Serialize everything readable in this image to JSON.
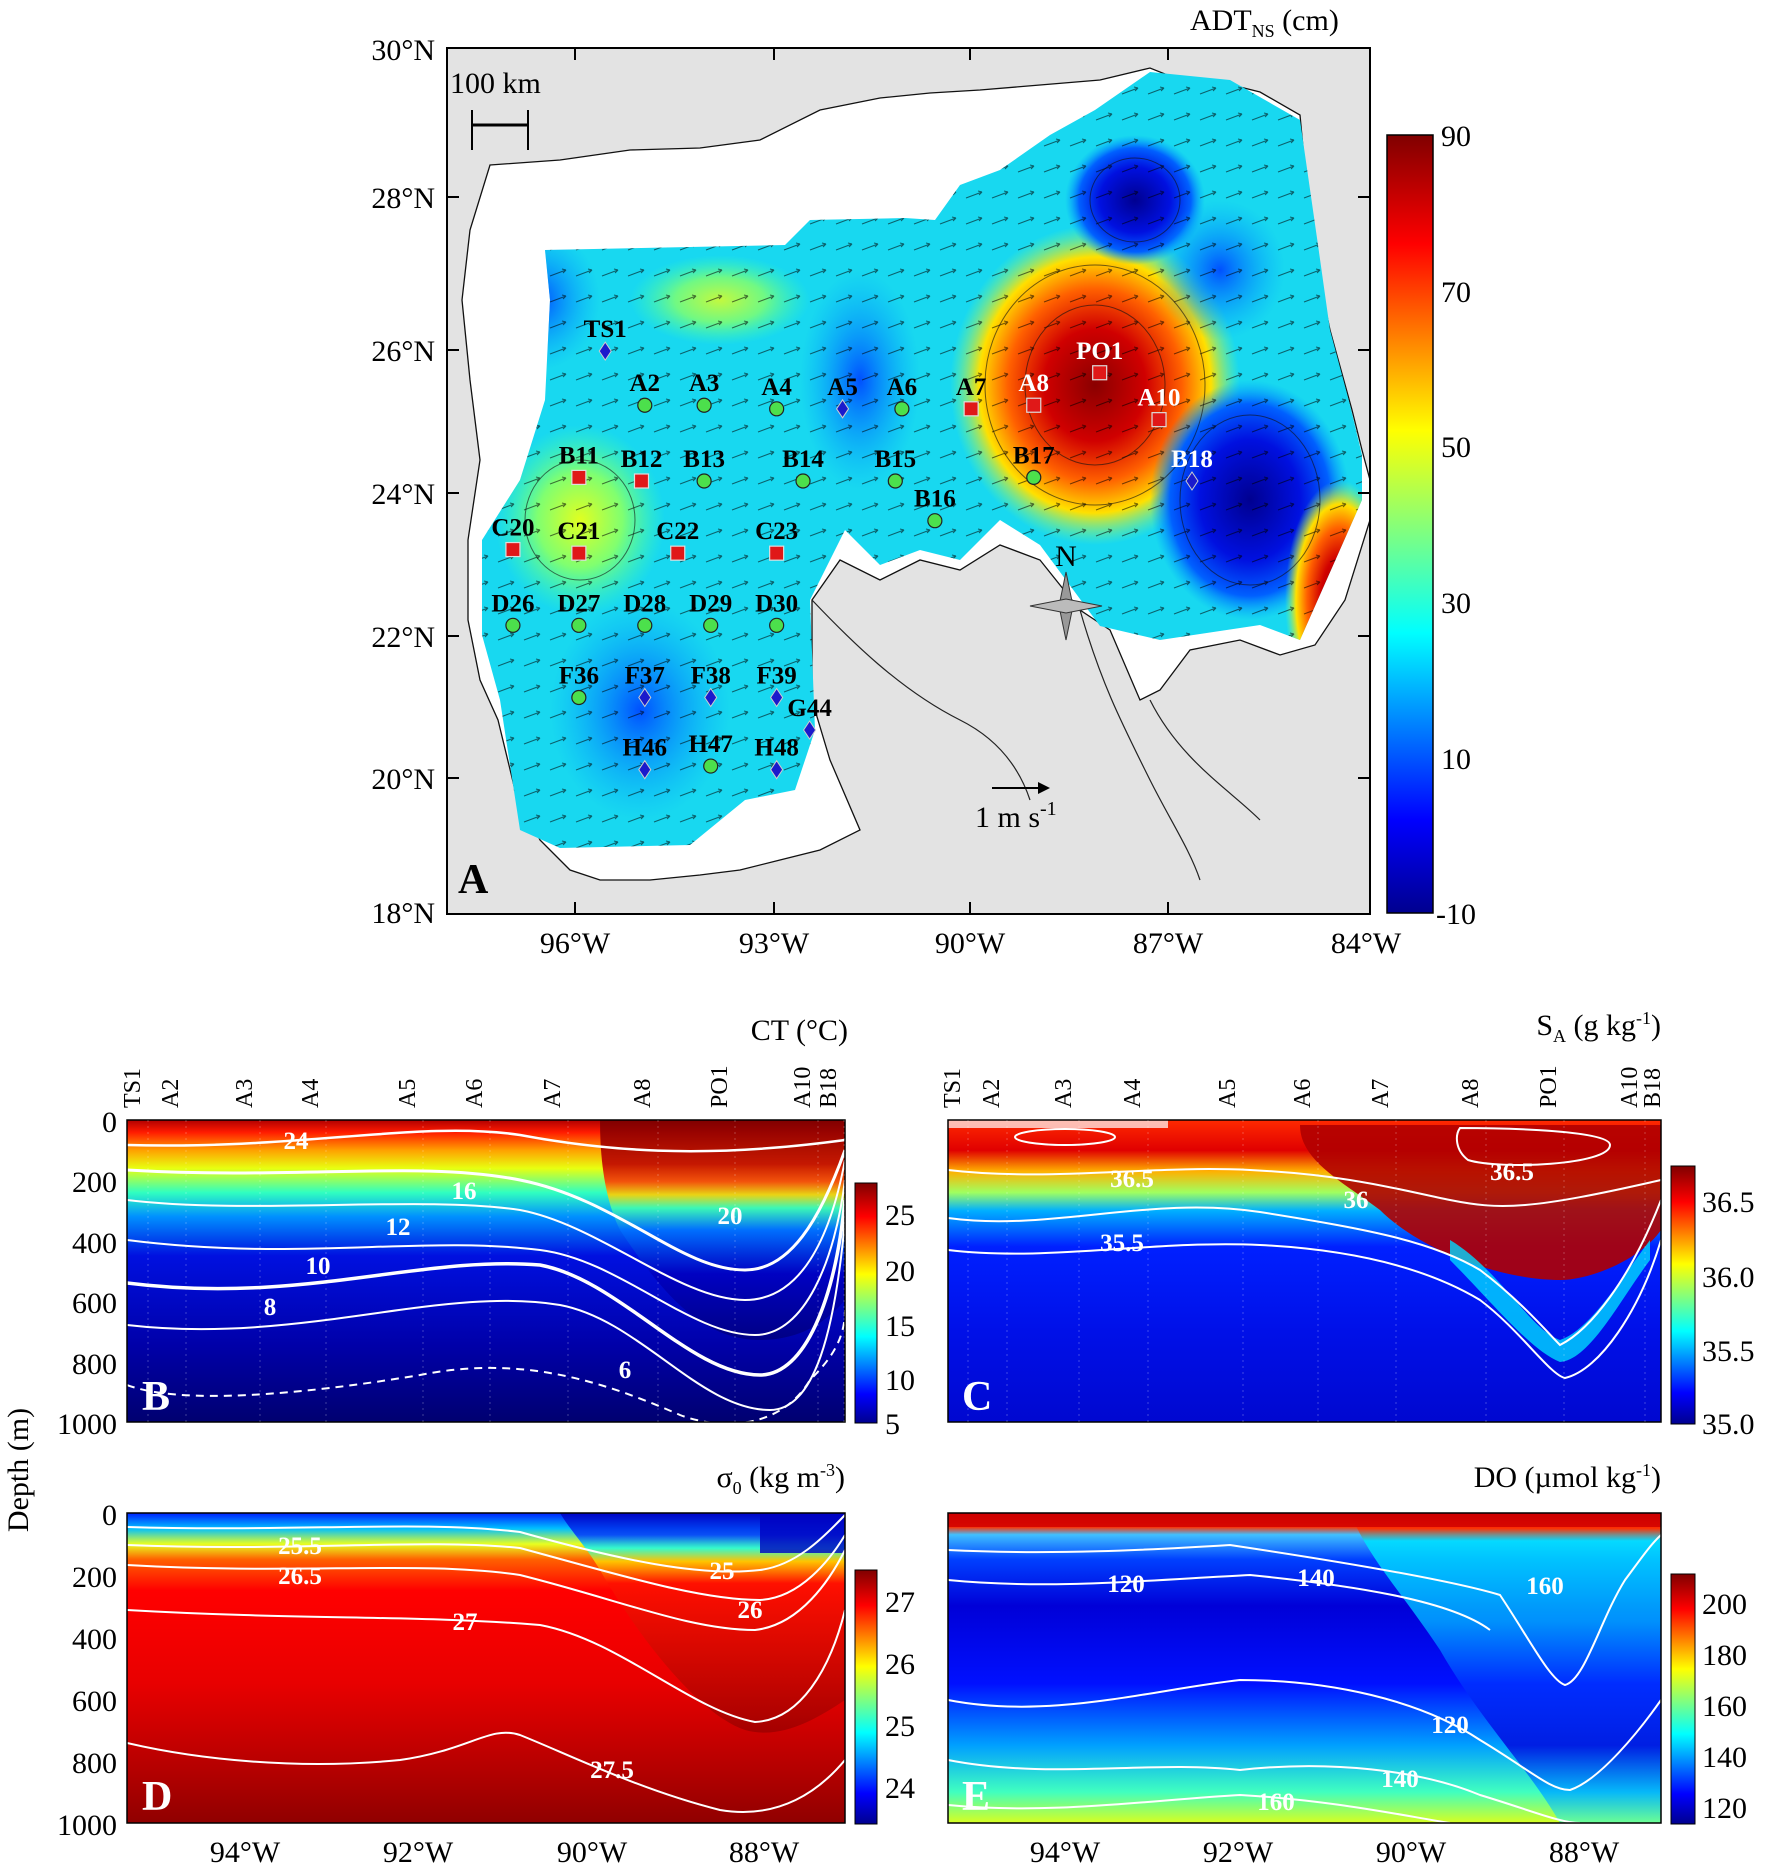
{
  "chart_data": [
    {
      "panel": "A",
      "type": "map",
      "title": "ADT",
      "title_sub": "NS",
      "title_unit": " (cm)",
      "xlim": [
        -98,
        -84
      ],
      "ylim": [
        18,
        30
      ],
      "x_ticks": [
        "96°W",
        "93°W",
        "90°W",
        "87°W",
        "84°W"
      ],
      "y_ticks": [
        "30°N",
        "28°N",
        "26°N",
        "24°N",
        "22°N",
        "20°N",
        "18°N"
      ],
      "colorbar": {
        "ticks": [
          "90",
          "70",
          "50",
          "30",
          "10",
          "-10"
        ],
        "range": [
          -10,
          90
        ]
      },
      "scale_bar": "100 km",
      "vector_scale": "1 m s",
      "vector_scale_sup": "-1",
      "north_label": "N",
      "stations": [
        {
          "name": "TS1",
          "lon": -95.6,
          "lat": 25.8,
          "marker": "diamond",
          "label_color": "black"
        },
        {
          "name": "A2",
          "lon": -95.0,
          "lat": 25.05,
          "marker": "circle",
          "label_color": "black"
        },
        {
          "name": "A3",
          "lon": -94.1,
          "lat": 25.05,
          "marker": "circle",
          "label_color": "black"
        },
        {
          "name": "A4",
          "lon": -93.0,
          "lat": 25.0,
          "marker": "circle",
          "label_color": "black"
        },
        {
          "name": "A5",
          "lon": -92.0,
          "lat": 25.0,
          "marker": "diamond",
          "label_color": "black"
        },
        {
          "name": "A6",
          "lon": -91.1,
          "lat": 25.0,
          "marker": "circle",
          "label_color": "black"
        },
        {
          "name": "A7",
          "lon": -90.05,
          "lat": 25.0,
          "marker": "square",
          "label_color": "black"
        },
        {
          "name": "A8",
          "lon": -89.1,
          "lat": 25.05,
          "marker": "square",
          "label_color": "white"
        },
        {
          "name": "PO1",
          "lon": -88.1,
          "lat": 25.5,
          "marker": "square",
          "label_color": "white"
        },
        {
          "name": "A10",
          "lon": -87.2,
          "lat": 24.85,
          "marker": "square",
          "label_color": "white"
        },
        {
          "name": "B11",
          "lon": -96.0,
          "lat": 24.05,
          "marker": "square",
          "label_color": "black"
        },
        {
          "name": "B12",
          "lon": -95.05,
          "lat": 24.0,
          "marker": "square",
          "label_color": "black"
        },
        {
          "name": "B13",
          "lon": -94.1,
          "lat": 24.0,
          "marker": "circle",
          "label_color": "black"
        },
        {
          "name": "B14",
          "lon": -92.6,
          "lat": 24.0,
          "marker": "circle",
          "label_color": "black"
        },
        {
          "name": "B15",
          "lon": -91.2,
          "lat": 24.0,
          "marker": "circle",
          "label_color": "black"
        },
        {
          "name": "B16",
          "lon": -90.6,
          "lat": 23.45,
          "marker": "circle",
          "label_color": "black"
        },
        {
          "name": "B17",
          "lon": -89.1,
          "lat": 24.05,
          "marker": "circle",
          "label_color": "black"
        },
        {
          "name": "B18",
          "lon": -86.7,
          "lat": 24.0,
          "marker": "diamond",
          "label_color": "white"
        },
        {
          "name": "C20",
          "lon": -97.0,
          "lat": 23.05,
          "marker": "square",
          "label_color": "black"
        },
        {
          "name": "C21",
          "lon": -96.0,
          "lat": 23.0,
          "marker": "square",
          "label_color": "black"
        },
        {
          "name": "C22",
          "lon": -94.5,
          "lat": 23.0,
          "marker": "square",
          "label_color": "black"
        },
        {
          "name": "C23",
          "lon": -93.0,
          "lat": 23.0,
          "marker": "square",
          "label_color": "black"
        },
        {
          "name": "D26",
          "lon": -97.0,
          "lat": 22.0,
          "marker": "circle",
          "label_color": "black"
        },
        {
          "name": "D27",
          "lon": -96.0,
          "lat": 22.0,
          "marker": "circle",
          "label_color": "black"
        },
        {
          "name": "D28",
          "lon": -95.0,
          "lat": 22.0,
          "marker": "circle",
          "label_color": "black"
        },
        {
          "name": "D29",
          "lon": -94.0,
          "lat": 22.0,
          "marker": "circle",
          "label_color": "black"
        },
        {
          "name": "D30",
          "lon": -93.0,
          "lat": 22.0,
          "marker": "circle",
          "label_color": "black"
        },
        {
          "name": "F36",
          "lon": -96.0,
          "lat": 21.0,
          "marker": "circle",
          "label_color": "black"
        },
        {
          "name": "F37",
          "lon": -95.0,
          "lat": 21.0,
          "marker": "diamond",
          "label_color": "black"
        },
        {
          "name": "F38",
          "lon": -94.0,
          "lat": 21.0,
          "marker": "diamond",
          "label_color": "black"
        },
        {
          "name": "F39",
          "lon": -93.0,
          "lat": 21.0,
          "marker": "diamond",
          "label_color": "black"
        },
        {
          "name": "G44",
          "lon": -92.5,
          "lat": 20.55,
          "marker": "diamond",
          "label_color": "black"
        },
        {
          "name": "H47",
          "lon": -94.0,
          "lat": 20.05,
          "marker": "circle",
          "label_color": "black"
        },
        {
          "name": "H46",
          "lon": -95.0,
          "lat": 20.0,
          "marker": "diamond",
          "label_color": "black"
        },
        {
          "name": "H48",
          "lon": -93.0,
          "lat": 20.0,
          "marker": "diamond",
          "label_color": "black"
        }
      ]
    },
    {
      "panel": "B",
      "type": "heatmap",
      "variable": "CT",
      "title": "CT (°C)",
      "ylabel": "Depth (m)",
      "ylim": [
        0,
        1000
      ],
      "y_ticks": [
        "0",
        "200",
        "400",
        "600",
        "800",
        "1000"
      ],
      "colorbar": {
        "ticks": [
          "25",
          "20",
          "15",
          "10",
          "5"
        ],
        "range": [
          5,
          27
        ]
      },
      "contour_labels": [
        "24",
        "20",
        "16",
        "12",
        "10",
        "8",
        "6"
      ],
      "stations": [
        "TS1",
        "A2",
        "A3",
        "A4",
        "A5",
        "A6",
        "A7",
        "A8",
        "PO1",
        "A10",
        "B18"
      ]
    },
    {
      "panel": "C",
      "type": "heatmap",
      "variable": "SA",
      "title": "S",
      "title_sub": "A",
      "title_unit": " (g kg",
      "title_sup": "-1",
      "title_end": ")",
      "ylim": [
        0,
        1000
      ],
      "colorbar": {
        "ticks": [
          "36.5",
          "36.0",
          "35.5",
          "35.0"
        ],
        "range": [
          35.0,
          36.75
        ]
      },
      "contour_labels": [
        "36.5",
        "36.5",
        "36",
        "35.5"
      ],
      "stations": [
        "TS1",
        "A2",
        "A3",
        "A4",
        "A5",
        "A6",
        "A7",
        "A8",
        "PO1",
        "A10",
        "B18"
      ]
    },
    {
      "panel": "D",
      "type": "heatmap",
      "variable": "sigma0",
      "title": "σ",
      "title_sub": "0",
      "title_unit": " (kg m",
      "title_sup": "-3",
      "title_end": ")",
      "ylim": [
        0,
        1000
      ],
      "y_ticks": [
        "0",
        "200",
        "400",
        "600",
        "800",
        "1000"
      ],
      "x_ticks": [
        "94°W",
        "92°W",
        "90°W",
        "88°W"
      ],
      "colorbar": {
        "ticks": [
          "27",
          "26",
          "25",
          "24"
        ],
        "range": [
          23.5,
          27.5
        ]
      },
      "contour_labels": [
        "25.5",
        "26.5",
        "25",
        "26",
        "27",
        "27.5"
      ]
    },
    {
      "panel": "E",
      "type": "heatmap",
      "variable": "DO",
      "title": "DO (µmol kg",
      "title_sup": "-1",
      "title_end": ")",
      "ylim": [
        0,
        1000
      ],
      "x_ticks": [
        "94°W",
        "92°W",
        "90°W",
        "88°W"
      ],
      "colorbar": {
        "ticks": [
          "200",
          "180",
          "160",
          "140",
          "120"
        ],
        "range": [
          110,
          210
        ]
      },
      "contour_labels": [
        "120",
        "140",
        "160",
        "120",
        "140",
        "160"
      ]
    }
  ]
}
